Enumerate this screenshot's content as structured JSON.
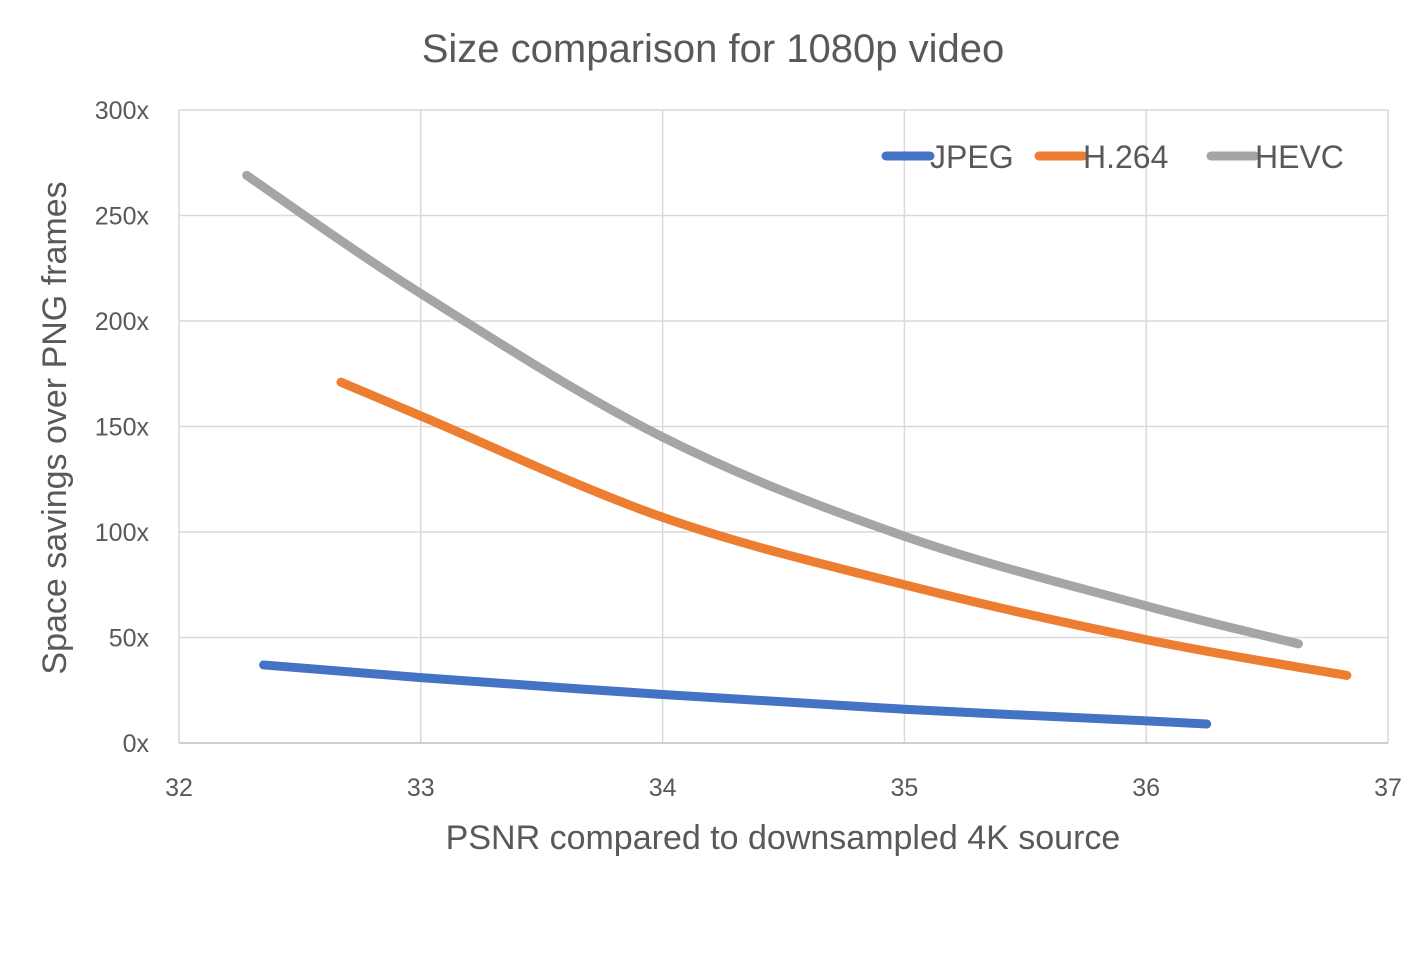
{
  "chart_data": {
    "type": "line",
    "title": "Size comparison for 1080p video",
    "xlabel": "PSNR compared to downsampled 4K source",
    "ylabel": "Space savings over PNG frames",
    "xlim": [
      32,
      37
    ],
    "ylim": [
      0,
      300
    ],
    "x_ticks": [
      "32",
      "33",
      "34",
      "35",
      "36",
      "37"
    ],
    "y_ticks": [
      "0x",
      "50x",
      "100x",
      "150x",
      "200x",
      "250x",
      "300x"
    ],
    "grid": true,
    "legend_position": "top-right",
    "series": [
      {
        "name": "JPEG",
        "color": "#4472C4",
        "points": [
          [
            32.35,
            37
          ],
          [
            33,
            31
          ],
          [
            34,
            23
          ],
          [
            35,
            16
          ],
          [
            36,
            10.5
          ],
          [
            36.25,
            9
          ]
        ]
      },
      {
        "name": "H.264",
        "color": "#ED7D31",
        "points": [
          [
            32.67,
            171
          ],
          [
            33,
            155
          ],
          [
            34,
            107
          ],
          [
            35,
            75
          ],
          [
            36,
            49
          ],
          [
            36.83,
            32
          ]
        ]
      },
      {
        "name": "HEVC",
        "color": "#A5A5A5",
        "points": [
          [
            32.28,
            269
          ],
          [
            33,
            213
          ],
          [
            34,
            145
          ],
          [
            35,
            98
          ],
          [
            36,
            65
          ],
          [
            36.63,
            47
          ]
        ]
      }
    ]
  }
}
